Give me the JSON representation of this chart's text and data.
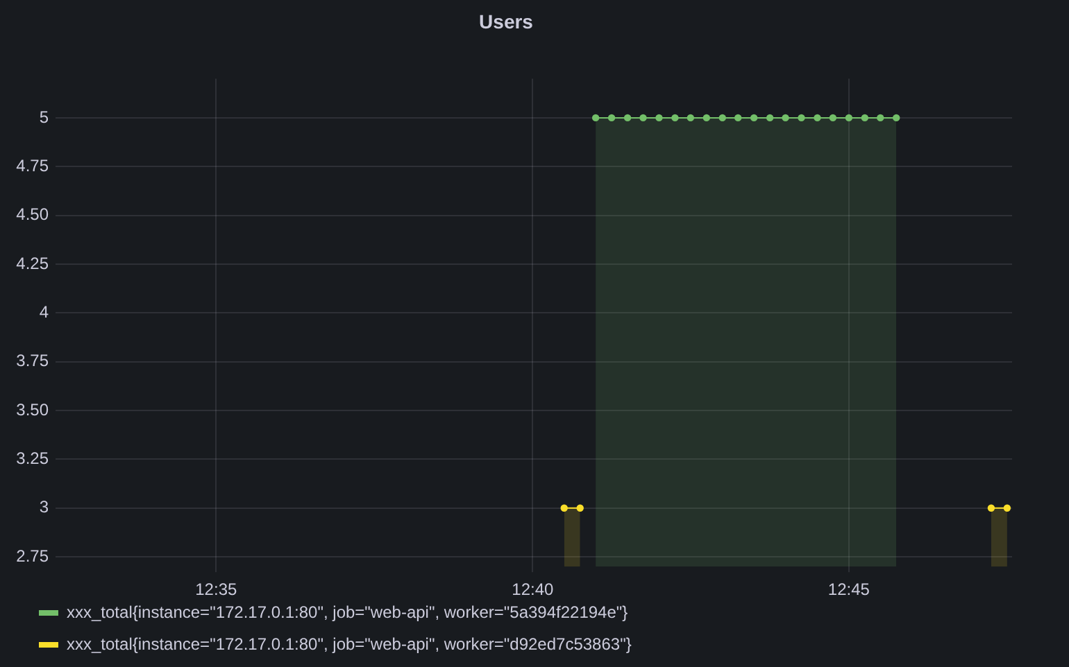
{
  "chart_data": {
    "type": "area",
    "title": "Users",
    "series": [
      {
        "name": "xxx_total{instance=\"172.17.0.1:80\", job=\"web-api\", worker=\"5a394f22194e\"}",
        "color": "#73bf69",
        "x": [
          12.6833,
          12.6875,
          12.6917,
          12.6958,
          12.7,
          12.7042,
          12.7083,
          12.7125,
          12.7167,
          12.7208,
          12.725,
          12.7292,
          12.7333,
          12.7375,
          12.7417,
          12.7458,
          12.75,
          12.7542,
          12.7583,
          12.7625
        ],
        "values": [
          5,
          5,
          5,
          5,
          5,
          5,
          5,
          5,
          5,
          5,
          5,
          5,
          5,
          5,
          5,
          5,
          5,
          5,
          5,
          5
        ]
      },
      {
        "name": "xxx_total{instance=\"172.17.0.1:80\", job=\"web-api\", worker=\"d92ed7c53863\"}",
        "color": "#fade2a",
        "x": [
          12.675,
          12.6792,
          12.7333,
          12.7875,
          12.7917
        ],
        "values": [
          3,
          3,
          null,
          3,
          3
        ]
      }
    ],
    "xlim": [
      12.541,
      12.793
    ],
    "xticks": [
      {
        "value": 12.5833,
        "label": "12:35"
      },
      {
        "value": 12.6667,
        "label": "12:40"
      },
      {
        "value": 12.75,
        "label": "12:45"
      }
    ],
    "ylim": [
      2.7,
      5.2
    ],
    "yticks": [
      2.75,
      3,
      3.25,
      {
        "value": 3.5,
        "label": "3.50"
      },
      3.75,
      4,
      4.25,
      {
        "value": 4.5,
        "label": "4.50"
      },
      4.75,
      5
    ],
    "grid": true,
    "legend": "bottom left",
    "marker": "circle"
  }
}
